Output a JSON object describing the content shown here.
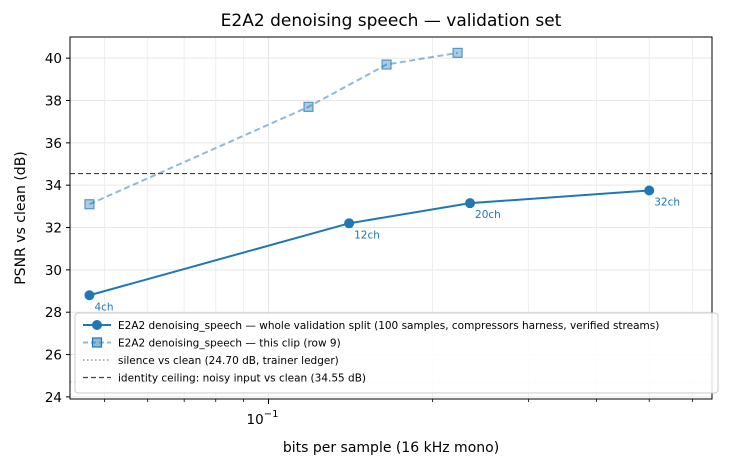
{
  "chart_data": {
    "type": "line",
    "title": "E2A2 denoising speech — validation set",
    "xlabel": "bits per sample (16 kHz mono)",
    "ylabel": "PSNR vs clean (dB)",
    "xscale": "log",
    "xlim": [
      0.0432,
      0.652
    ],
    "ylim": [
      23.9,
      41.0
    ],
    "yticks": [
      24,
      26,
      28,
      30,
      32,
      34,
      36,
      38,
      40
    ],
    "xticks_major": [
      {
        "value": 0.1,
        "base": "10",
        "exp": "−1"
      }
    ],
    "xticks_minor": [
      0.05,
      0.06,
      0.07,
      0.08,
      0.09,
      0.2,
      0.3,
      0.4,
      0.5,
      0.6
    ],
    "grid": true,
    "legend_position": "lower-right",
    "series": [
      {
        "name": "E2A2 denoising_speech — whole validation split (100 samples, compressors harness, verified streams)",
        "style": "solid",
        "marker": "circle",
        "color": "#1f77b4",
        "points": [
          {
            "x": 0.0469,
            "y": 28.8,
            "label": "4ch"
          },
          {
            "x": 0.1406,
            "y": 32.2,
            "label": "12ch"
          },
          {
            "x": 0.2344,
            "y": 33.15,
            "label": "20ch"
          },
          {
            "x": 0.5,
            "y": 33.75,
            "label": "32ch"
          }
        ]
      },
      {
        "name": "E2A2 denoising_speech — this clip (row 9)",
        "style": "dashed",
        "marker": "square",
        "color": "#1f77b4",
        "alpha": 0.5,
        "points": [
          {
            "x": 0.0469,
            "y": 33.1
          },
          {
            "x": 0.1184,
            "y": 37.7
          },
          {
            "x": 0.1647,
            "y": 39.7
          },
          {
            "x": 0.2224,
            "y": 40.25
          }
        ]
      }
    ],
    "reference_lines": [
      {
        "name": "silence vs clean (24.70 dB, trainer ledger)",
        "y": 24.7,
        "style": "dotted",
        "color": "#808080"
      },
      {
        "name": "identity ceiling: noisy input vs clean (34.55 dB)",
        "y": 34.55,
        "style": "dashed",
        "color": "#404040"
      }
    ]
  }
}
